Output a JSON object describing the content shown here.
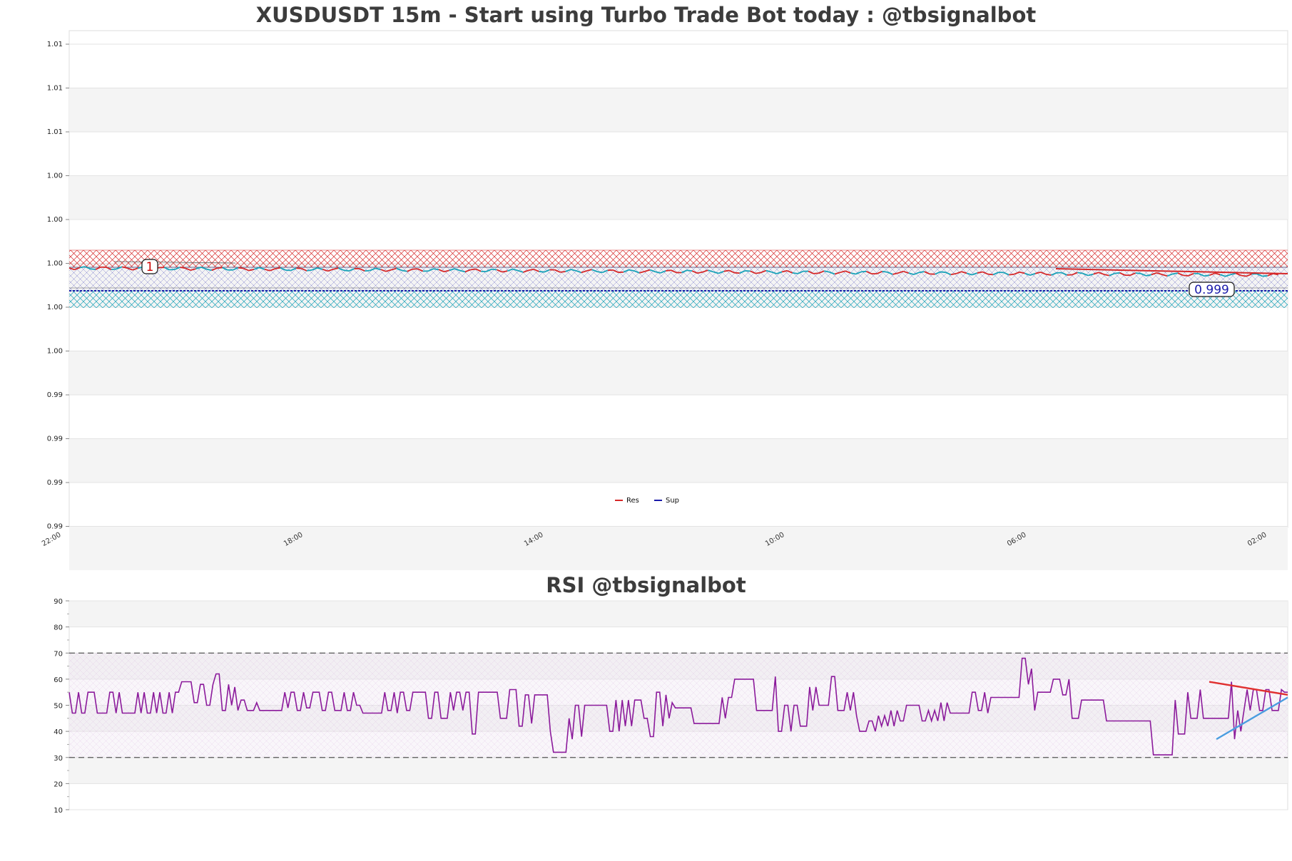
{
  "chart_data": [
    {
      "type": "line",
      "title": "XUSDUSDT 15m - Start using Turbo Trade Bot today : @tbsignalbot",
      "y_tick_labels": [
        "1.01",
        "1.01",
        "1.01",
        "1.00",
        "1.00",
        "1.00",
        "1.00",
        "1.00",
        "0.99",
        "0.99",
        "0.99",
        "0.99"
      ],
      "x_tick_labels": [
        "22:00",
        "18:00",
        "14:00",
        "10:00",
        "06:00",
        "02:00"
      ],
      "legend": [
        "Res",
        "Sup"
      ],
      "legend_placement": "bottom-center",
      "annotations": [
        {
          "text": "1",
          "color": "#cc0000"
        },
        {
          "text": "0.999",
          "color": "#1a1aaa"
        }
      ],
      "series": [
        {
          "name": "Res",
          "color": "#d62728"
        },
        {
          "name": "Sup",
          "color": "#1a1aaa"
        }
      ],
      "zones": [
        {
          "color": "#d62728",
          "kind": "resistance"
        },
        {
          "color": "#1a1aaa",
          "kind": "support"
        },
        {
          "color": "#17a2b8",
          "kind": "support"
        }
      ],
      "grid": true
    },
    {
      "type": "line",
      "title": "RSI @tbsignalbot",
      "y_ticks": [
        90,
        80,
        70,
        60,
        50,
        40,
        30,
        20,
        10
      ],
      "ylim": [
        10,
        90
      ],
      "overbought": 70,
      "oversold": 30,
      "line_color": "#8b1a9b",
      "values": [
        55,
        47,
        47,
        55,
        47,
        47,
        55,
        55,
        55,
        47,
        47,
        47,
        47,
        55,
        55,
        47,
        55,
        47,
        47,
        47,
        47,
        47,
        55,
        47,
        55,
        47,
        47,
        55,
        47,
        55,
        47,
        47,
        55,
        47,
        55,
        55,
        59,
        59,
        59,
        59,
        51,
        51,
        58,
        58,
        50,
        50,
        58,
        62,
        62,
        48,
        48,
        58,
        50,
        57,
        48,
        52,
        52,
        48,
        48,
        48,
        51,
        48,
        48,
        48,
        48,
        48,
        48,
        48,
        48,
        55,
        49,
        55,
        55,
        48,
        48,
        55,
        49,
        49,
        55,
        55,
        55,
        48,
        48,
        55,
        55,
        48,
        48,
        48,
        55,
        48,
        48,
        55,
        50,
        50,
        47,
        47,
        47,
        47,
        47,
        47,
        47,
        55,
        48,
        48,
        55,
        47,
        55,
        55,
        48,
        48,
        55,
        55,
        55,
        55,
        55,
        45,
        45,
        55,
        55,
        45,
        45,
        45,
        55,
        48,
        55,
        55,
        48,
        55,
        55,
        39,
        39,
        55,
        55,
        55,
        55,
        55,
        55,
        55,
        45,
        45,
        45,
        56,
        56,
        56,
        42,
        42,
        54,
        54,
        43,
        54,
        54,
        54,
        54,
        54,
        40,
        32,
        32,
        32,
        32,
        32,
        45,
        37,
        50,
        50,
        38,
        50,
        50,
        50,
        50,
        50,
        50,
        50,
        50,
        40,
        40,
        52,
        40,
        52,
        42,
        52,
        42,
        52,
        52,
        52,
        45,
        45,
        38,
        38,
        55,
        55,
        42,
        54,
        45,
        51,
        49,
        49,
        49,
        49,
        49,
        49,
        43,
        43,
        43,
        43,
        43,
        43,
        43,
        43,
        43,
        53,
        45,
        53,
        53,
        60,
        60,
        60,
        60,
        60,
        60,
        60,
        48,
        48,
        48,
        48,
        48,
        48,
        61,
        40,
        40,
        50,
        50,
        40,
        50,
        50,
        42,
        42,
        42,
        57,
        48,
        57,
        50,
        50,
        50,
        50,
        61,
        61,
        48,
        48,
        48,
        55,
        48,
        55,
        46,
        40,
        40,
        40,
        44,
        44,
        40,
        46,
        42,
        46,
        42,
        48,
        42,
        48,
        44,
        44,
        50,
        50,
        50,
        50,
        50,
        44,
        44,
        48,
        44,
        48,
        44,
        51,
        44,
        51,
        47,
        47,
        47,
        47,
        47,
        47,
        47,
        55,
        55,
        48,
        48,
        55,
        47,
        53,
        53,
        53,
        53,
        53,
        53,
        53,
        53,
        53,
        53,
        68,
        68,
        58,
        64,
        48,
        55,
        55,
        55,
        55,
        55,
        60,
        60,
        60,
        54,
        54,
        60,
        45,
        45,
        45,
        52,
        52,
        52,
        52,
        52,
        52,
        52,
        52,
        44,
        44,
        44,
        44,
        44,
        44,
        44,
        44,
        44,
        44,
        44,
        44,
        44,
        44,
        44,
        31,
        31,
        31,
        31,
        31,
        31,
        31,
        52,
        39,
        39,
        39,
        55,
        45,
        45,
        45,
        56,
        45,
        45,
        45,
        45,
        45,
        45,
        45,
        45,
        45,
        59,
        37,
        48,
        40,
        48,
        56,
        48,
        56,
        56,
        48,
        48,
        56,
        56,
        48,
        48,
        48,
        56,
        55,
        55
      ],
      "trendlines": [
        {
          "color": "#e03030",
          "from": 59,
          "to": 54
        },
        {
          "color": "#4a9de0",
          "from": 37,
          "to": 53
        }
      ],
      "grid": true
    }
  ]
}
